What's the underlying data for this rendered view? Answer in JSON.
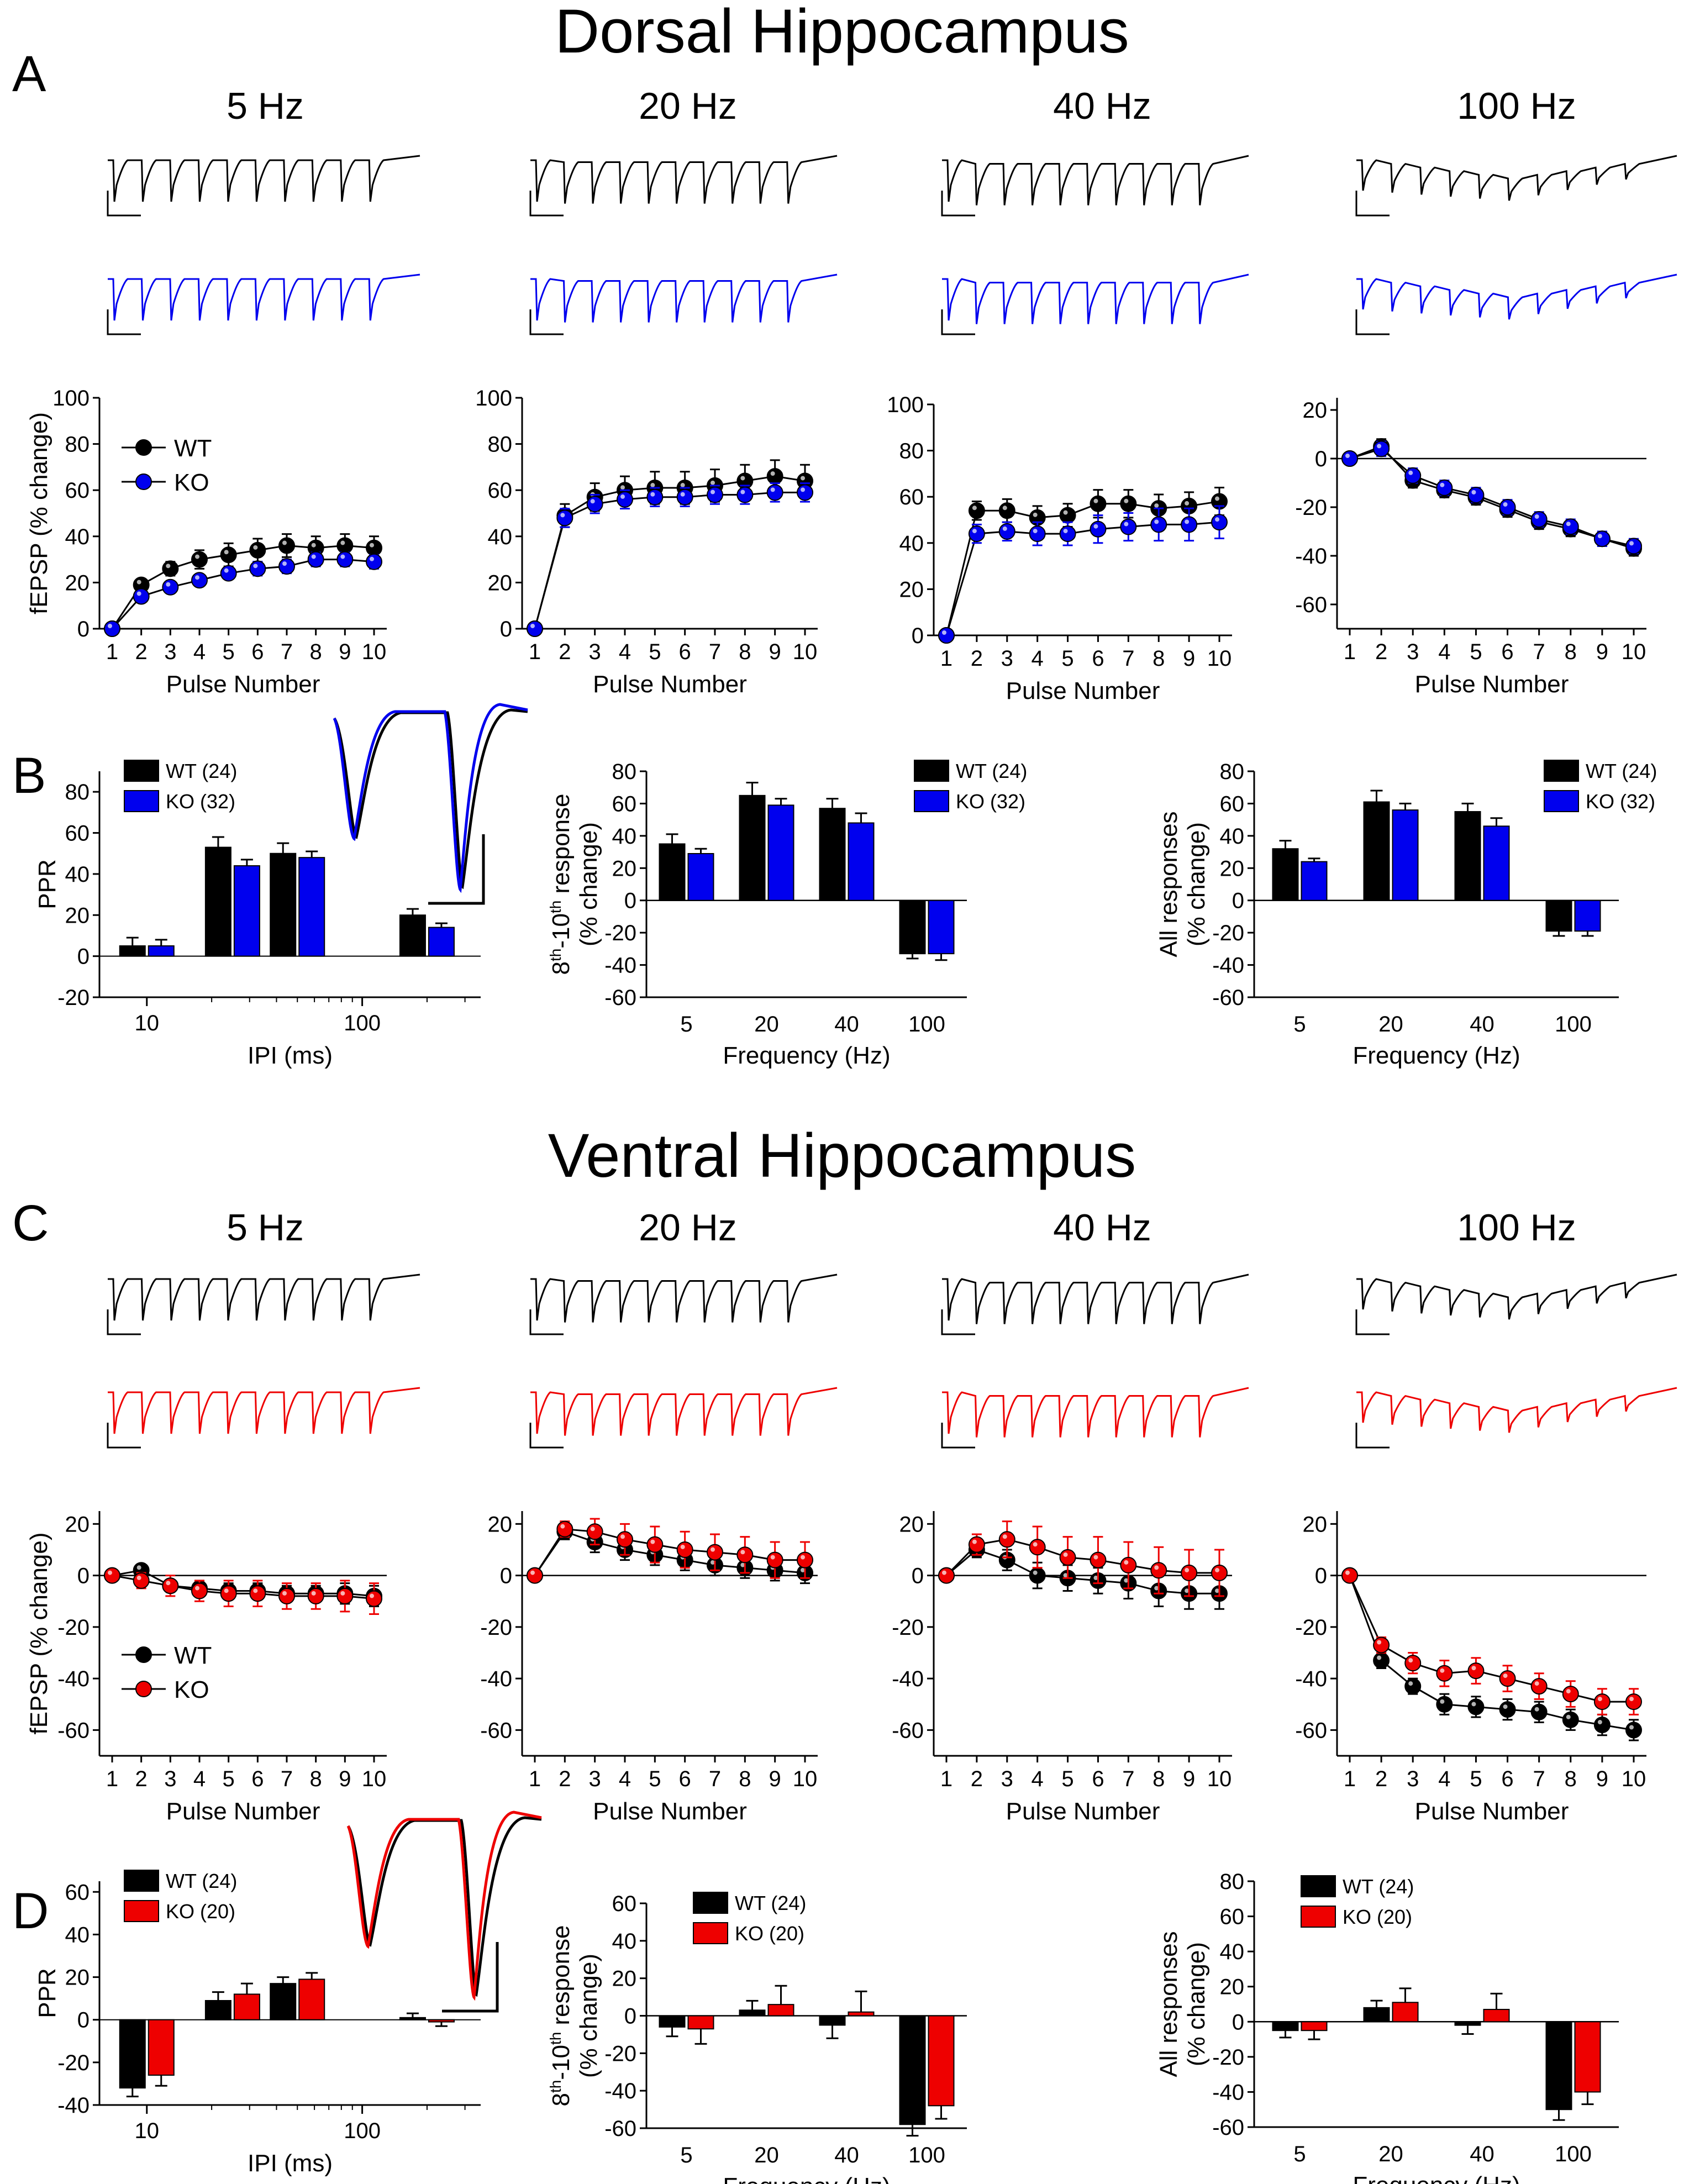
{
  "colors": {
    "wt": "#000000",
    "ko_dorsal": "#0000ee",
    "ko_ventral": "#ee0000"
  },
  "titles": {
    "dorsal": "Dorsal Hippocampus",
    "ventral": "Ventral Hippocampus"
  },
  "panel_labels": {
    "a": "A",
    "b": "B",
    "c": "C",
    "d": "D"
  },
  "freq_titles": [
    "5 Hz",
    "20 Hz",
    "40 Hz",
    "100 Hz"
  ],
  "chart_data": [
    {
      "id": "A1",
      "type": "line",
      "panel": "A",
      "title": "5 Hz",
      "xlabel": "Pulse Number",
      "ylabel": "fEPSP (% change)",
      "ylim": [
        0,
        100
      ],
      "yticks": [
        0,
        20,
        40,
        60,
        80,
        100
      ],
      "x": [
        1,
        2,
        3,
        4,
        5,
        6,
        7,
        8,
        9,
        10
      ],
      "legend": [
        "WT",
        "KO"
      ],
      "series": [
        {
          "name": "WT",
          "values": [
            0,
            19,
            26,
            30,
            32,
            34,
            36,
            35,
            36,
            35
          ],
          "err": [
            0,
            2,
            3,
            4,
            5,
            5,
            5,
            5,
            5,
            5
          ]
        },
        {
          "name": "KO",
          "values": [
            0,
            14,
            18,
            21,
            24,
            26,
            27,
            30,
            30,
            29
          ],
          "err": [
            0,
            2,
            2,
            2,
            2,
            3,
            3,
            3,
            3,
            3
          ]
        }
      ]
    },
    {
      "id": "A2",
      "type": "line",
      "panel": "A",
      "title": "20 Hz",
      "xlabel": "Pulse Number",
      "ylabel": "",
      "ylim": [
        0,
        100
      ],
      "yticks": [
        0,
        20,
        40,
        60,
        80,
        100
      ],
      "x": [
        1,
        2,
        3,
        4,
        5,
        6,
        7,
        8,
        9,
        10
      ],
      "series": [
        {
          "name": "WT",
          "values": [
            0,
            49,
            57,
            60,
            61,
            61,
            62,
            64,
            66,
            64
          ],
          "err": [
            0,
            5,
            6,
            6,
            7,
            7,
            7,
            7,
            7,
            7
          ]
        },
        {
          "name": "KO",
          "values": [
            0,
            48,
            54,
            56,
            57,
            57,
            58,
            58,
            59,
            59
          ],
          "err": [
            0,
            4,
            4,
            4,
            4,
            4,
            4,
            4,
            4,
            4
          ]
        }
      ]
    },
    {
      "id": "A3",
      "type": "line",
      "panel": "A",
      "title": "40 Hz",
      "xlabel": "Pulse Number",
      "ylabel": "",
      "ylim": [
        0,
        100
      ],
      "yticks": [
        0,
        20,
        40,
        60,
        80,
        100
      ],
      "x": [
        1,
        2,
        3,
        4,
        5,
        6,
        7,
        8,
        9,
        10
      ],
      "series": [
        {
          "name": "WT",
          "values": [
            0,
            54,
            54,
            51,
            52,
            57,
            57,
            55,
            56,
            58
          ],
          "err": [
            0,
            4,
            5,
            5,
            5,
            6,
            6,
            6,
            6,
            6
          ]
        },
        {
          "name": "KO",
          "values": [
            0,
            44,
            45,
            44,
            44,
            46,
            47,
            48,
            48,
            49
          ],
          "err": [
            0,
            4,
            4,
            5,
            5,
            6,
            6,
            7,
            7,
            7
          ]
        }
      ]
    },
    {
      "id": "A4",
      "type": "line",
      "panel": "A",
      "title": "100 Hz",
      "xlabel": "Pulse Number",
      "ylabel": "",
      "ylim": [
        -70,
        25
      ],
      "yticks": [
        -60,
        -40,
        -20,
        0,
        20
      ],
      "zero_line": true,
      "x": [
        1,
        2,
        3,
        4,
        5,
        6,
        7,
        8,
        9,
        10
      ],
      "series": [
        {
          "name": "WT",
          "values": [
            0,
            5,
            -9,
            -13,
            -16,
            -21,
            -26,
            -29,
            -33,
            -37
          ],
          "err": [
            0,
            3,
            3,
            3,
            3,
            3,
            3,
            3,
            3,
            3
          ]
        },
        {
          "name": "KO",
          "values": [
            0,
            4,
            -7,
            -12,
            -15,
            -20,
            -25,
            -28,
            -33,
            -36
          ],
          "err": [
            0,
            3,
            3,
            3,
            3,
            3,
            3,
            3,
            3,
            3
          ]
        }
      ]
    },
    {
      "id": "B1",
      "type": "bar",
      "panel": "B",
      "xlabel": "IPI (ms)",
      "ylabel": "PPR",
      "xscale": "log",
      "xticks": [
        10,
        100
      ],
      "ylim": [
        -20,
        90
      ],
      "yticks": [
        -20,
        0,
        20,
        40,
        60,
        80
      ],
      "legend": [
        "WT (24)",
        "KO (32)"
      ],
      "categories": [
        10,
        25,
        50,
        200
      ],
      "series": [
        {
          "name": "WT (24)",
          "values": [
            5,
            53,
            50,
            20
          ],
          "err": [
            4,
            5,
            5,
            3
          ]
        },
        {
          "name": "KO (32)",
          "values": [
            5,
            44,
            48,
            14
          ],
          "err": [
            3,
            3,
            3,
            2
          ]
        }
      ]
    },
    {
      "id": "B2",
      "type": "bar",
      "panel": "B",
      "xlabel": "Frequency (Hz)",
      "ylabel_main": "8",
      "ylabel_sup1": "th",
      "ylabel_mid": "-10",
      "ylabel_sup2": "th",
      "ylabel_end": " response",
      "ylabel_line2": "(% change)",
      "ylim": [
        -60,
        80
      ],
      "yticks": [
        -60,
        -40,
        -20,
        0,
        20,
        40,
        60,
        80
      ],
      "legend": [
        "WT (24)",
        "KO (32)"
      ],
      "categories": [
        "5",
        "20",
        "40",
        "100"
      ],
      "series": [
        {
          "name": "WT (24)",
          "values": [
            35,
            65,
            57,
            -33
          ],
          "err": [
            6,
            8,
            6,
            3
          ]
        },
        {
          "name": "KO (32)",
          "values": [
            29,
            59,
            48,
            -33
          ],
          "err": [
            3,
            4,
            6,
            4
          ]
        }
      ]
    },
    {
      "id": "B3",
      "type": "bar",
      "panel": "B",
      "xlabel": "Frequency (Hz)",
      "ylabel": "All responses",
      "ylabel_line2": "(% change)",
      "ylim": [
        -60,
        80
      ],
      "yticks": [
        -60,
        -40,
        -20,
        0,
        20,
        40,
        60,
        80
      ],
      "legend": [
        "WT (24)",
        "KO (32)"
      ],
      "categories": [
        "5",
        "20",
        "40",
        "100"
      ],
      "series": [
        {
          "name": "WT (24)",
          "values": [
            32,
            61,
            55,
            -19
          ],
          "err": [
            5,
            7,
            5,
            3
          ]
        },
        {
          "name": "KO (32)",
          "values": [
            24,
            56,
            46,
            -19
          ],
          "err": [
            2,
            4,
            5,
            3
          ]
        }
      ]
    },
    {
      "id": "C1",
      "type": "line",
      "panel": "C",
      "title": "5 Hz",
      "xlabel": "Pulse Number",
      "ylabel": "fEPSP (% change)",
      "ylim": [
        -70,
        25
      ],
      "yticks": [
        -60,
        -40,
        -20,
        0,
        20
      ],
      "zero_line": true,
      "x": [
        1,
        2,
        3,
        4,
        5,
        6,
        7,
        8,
        9,
        10
      ],
      "legend": [
        "WT",
        "KO"
      ],
      "series": [
        {
          "name": "WT",
          "values": [
            0,
            2,
            -4,
            -5,
            -6,
            -6,
            -7,
            -7,
            -7,
            -8
          ],
          "err": [
            0,
            2,
            2,
            3,
            3,
            3,
            3,
            3,
            4,
            4
          ]
        },
        {
          "name": "KO",
          "values": [
            0,
            -2,
            -4,
            -6,
            -7,
            -7,
            -8,
            -8,
            -8,
            -9
          ],
          "err": [
            0,
            3,
            4,
            4,
            5,
            5,
            5,
            5,
            6,
            6
          ]
        }
      ]
    },
    {
      "id": "C2",
      "type": "line",
      "panel": "C",
      "title": "20 Hz",
      "xlabel": "Pulse Number",
      "ylabel": "",
      "ylim": [
        -70,
        25
      ],
      "yticks": [
        -60,
        -40,
        -20,
        0,
        20
      ],
      "zero_line": true,
      "x": [
        1,
        2,
        3,
        4,
        5,
        6,
        7,
        8,
        9,
        10
      ],
      "series": [
        {
          "name": "WT",
          "values": [
            0,
            17,
            13,
            10,
            8,
            6,
            4,
            3,
            2,
            1
          ],
          "err": [
            0,
            3,
            4,
            4,
            4,
            4,
            4,
            4,
            4,
            4
          ]
        },
        {
          "name": "KO",
          "values": [
            0,
            18,
            17,
            14,
            12,
            10,
            9,
            8,
            6,
            6
          ],
          "err": [
            0,
            3,
            5,
            6,
            7,
            7,
            7,
            7,
            7,
            7
          ]
        }
      ]
    },
    {
      "id": "C3",
      "type": "line",
      "panel": "C",
      "title": "40 Hz",
      "xlabel": "Pulse Number",
      "ylabel": "",
      "ylim": [
        -70,
        25
      ],
      "yticks": [
        -60,
        -40,
        -20,
        0,
        20
      ],
      "zero_line": true,
      "x": [
        1,
        2,
        3,
        4,
        5,
        6,
        7,
        8,
        9,
        10
      ],
      "series": [
        {
          "name": "WT",
          "values": [
            0,
            10,
            6,
            0,
            -1,
            -2,
            -3,
            -6,
            -7,
            -7
          ],
          "err": [
            0,
            3,
            4,
            5,
            5,
            5,
            6,
            6,
            6,
            6
          ]
        },
        {
          "name": "KO",
          "values": [
            0,
            12,
            14,
            11,
            7,
            6,
            4,
            2,
            1,
            1
          ],
          "err": [
            0,
            4,
            7,
            8,
            8,
            9,
            9,
            9,
            9,
            9
          ]
        }
      ]
    },
    {
      "id": "C4",
      "type": "line",
      "panel": "C",
      "title": "100 Hz",
      "xlabel": "Pulse Number",
      "ylabel": "",
      "ylim": [
        -70,
        25
      ],
      "yticks": [
        -60,
        -40,
        -20,
        0,
        20
      ],
      "zero_line": true,
      "x": [
        1,
        2,
        3,
        4,
        5,
        6,
        7,
        8,
        9,
        10
      ],
      "series": [
        {
          "name": "WT",
          "values": [
            0,
            -33,
            -43,
            -50,
            -51,
            -52,
            -53,
            -56,
            -58,
            -60
          ],
          "err": [
            0,
            3,
            3,
            4,
            4,
            4,
            4,
            4,
            4,
            4
          ]
        },
        {
          "name": "KO",
          "values": [
            0,
            -27,
            -34,
            -38,
            -37,
            -40,
            -43,
            -46,
            -49,
            -49
          ],
          "err": [
            0,
            3,
            4,
            5,
            5,
            5,
            5,
            5,
            5,
            5
          ]
        }
      ]
    },
    {
      "id": "D1",
      "type": "bar",
      "panel": "D",
      "xlabel": "IPI (ms)",
      "ylabel": "PPR",
      "xscale": "log",
      "xticks": [
        10,
        100
      ],
      "ylim": [
        -40,
        65
      ],
      "yticks": [
        -40,
        -20,
        0,
        20,
        40,
        60
      ],
      "legend": [
        "WT (24)",
        "KO (20)"
      ],
      "categories": [
        10,
        25,
        50,
        200
      ],
      "series": [
        {
          "name": "WT (24)",
          "values": [
            -32,
            9,
            17,
            1
          ],
          "err": [
            4,
            4,
            3,
            2
          ]
        },
        {
          "name": "KO (20)",
          "values": [
            -26,
            12,
            19,
            -1
          ],
          "err": [
            5,
            5,
            3,
            2
          ]
        }
      ]
    },
    {
      "id": "D2",
      "type": "bar",
      "panel": "D",
      "xlabel": "Frequency (Hz)",
      "ylabel_main": "8",
      "ylabel_sup1": "th",
      "ylabel_mid": "-10",
      "ylabel_sup2": "th",
      "ylabel_end": " response",
      "ylabel_line2": "(% change)",
      "ylim": [
        -60,
        60
      ],
      "yticks": [
        -60,
        -40,
        -20,
        0,
        20,
        40,
        60
      ],
      "legend": [
        "WT (24)",
        "KO (20)"
      ],
      "categories": [
        "5",
        "20",
        "40",
        "100"
      ],
      "series": [
        {
          "name": "WT (24)",
          "values": [
            -6,
            3,
            -5,
            -58
          ],
          "err": [
            5,
            5,
            7,
            6
          ]
        },
        {
          "name": "KO (20)",
          "values": [
            -7,
            6,
            2,
            -48
          ],
          "err": [
            8,
            10,
            11,
            7
          ]
        }
      ]
    },
    {
      "id": "D3",
      "type": "bar",
      "panel": "D",
      "xlabel": "Frequency (Hz)",
      "ylabel": "All responses",
      "ylabel_line2": "(% change)",
      "ylim": [
        -60,
        80
      ],
      "yticks": [
        -60,
        -40,
        -20,
        0,
        20,
        40,
        60,
        80
      ],
      "legend": [
        "WT (24)",
        "KO (20)"
      ],
      "categories": [
        "5",
        "20",
        "40",
        "100"
      ],
      "series": [
        {
          "name": "WT (24)",
          "values": [
            -5,
            8,
            -2,
            -50
          ],
          "err": [
            4,
            4,
            5,
            6
          ]
        },
        {
          "name": "KO (20)",
          "values": [
            -5,
            11,
            7,
            -40
          ],
          "err": [
            5,
            8,
            9,
            7
          ]
        }
      ]
    }
  ]
}
